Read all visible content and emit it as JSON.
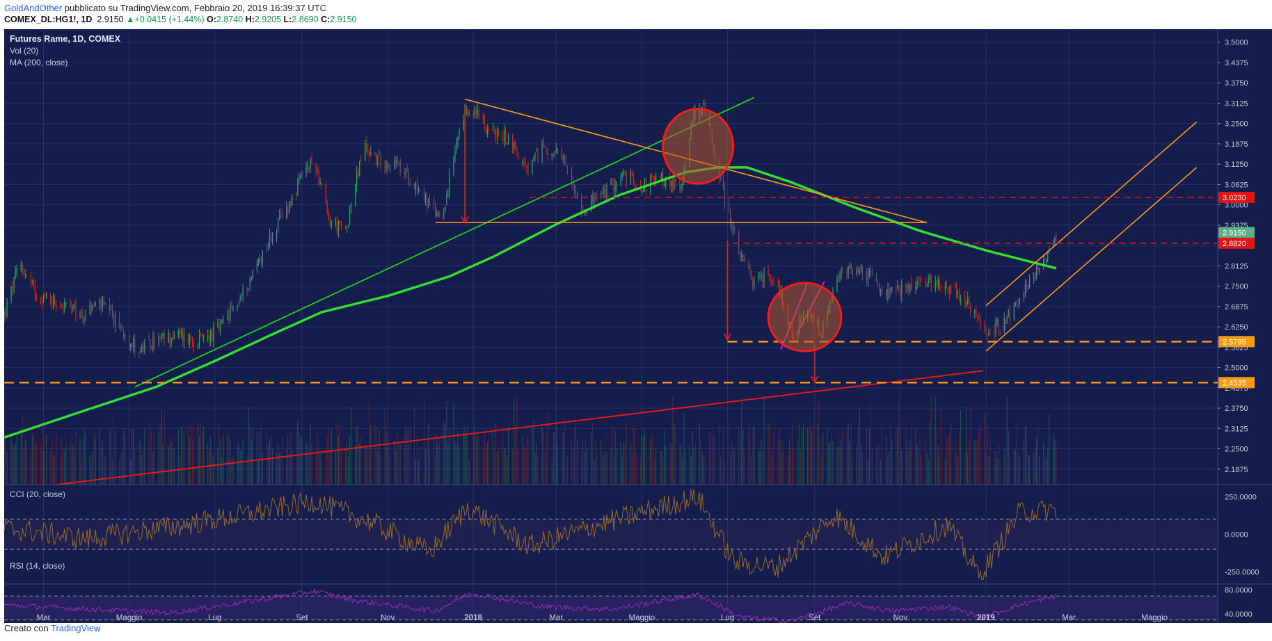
{
  "header": {
    "author": "GoldAndOther",
    "published": "pubblicato su TradingView.com, Febbraio 20, 2019 16:39:37 UTC",
    "symbol": "COMEX_DL:HG1!, 1D",
    "last": "2.9150",
    "arrow": "▲",
    "change": "+0.0415 (+1.44%)",
    "o_label": "O:",
    "o": "2.8740",
    "h_label": "H:",
    "h": "2.9205",
    "l_label": "L:",
    "l": "2.8690",
    "c_label": "C:",
    "c": "2.9150"
  },
  "footer": {
    "prefix": "Creato con",
    "brand": "TradingView"
  },
  "colors": {
    "background": "#141d4b",
    "grid": "#24316a",
    "up": "#2ea66a",
    "down": "#b8322f",
    "ma": "#33dd33",
    "trend_green": "#22cc22",
    "trend_red": "#e31b1b",
    "orange": "#ff9a1a",
    "magenta": "#e02de0",
    "cci": "#9a6a2a",
    "rsi": "#9b2bb5",
    "price_badge": "#5fae85",
    "red_badge": "#e01616",
    "orange_badge": "#f39c12"
  },
  "chart_data": {
    "type": "candlestick",
    "title": "Futures Rame, 1D, COMEX",
    "indicators": [
      "Vol (20)",
      "MA (200, close)"
    ],
    "ylim": [
      2.14,
      3.54
    ],
    "y_ticks": [
      "3.5000",
      "3.4375",
      "3.3750",
      "3.3125",
      "3.2500",
      "3.1875",
      "3.1250",
      "3.0625",
      "3.0000",
      "2.9375",
      "2.8750",
      "2.8125",
      "2.7500",
      "2.6875",
      "2.6250",
      "2.5625",
      "2.5000",
      "2.4375",
      "2.3750",
      "2.3125",
      "2.2500",
      "2.1875"
    ],
    "x_ticks": [
      {
        "label": "Mar",
        "date": "2017-03-01",
        "bold": false
      },
      {
        "label": "Maggio",
        "date": "2017-05-01",
        "bold": false
      },
      {
        "label": "Lug",
        "date": "2017-07-01",
        "bold": false
      },
      {
        "label": "Set",
        "date": "2017-09-01",
        "bold": false
      },
      {
        "label": "Nov",
        "date": "2017-11-01",
        "bold": false
      },
      {
        "label": "2018",
        "date": "2018-01-01",
        "bold": true
      },
      {
        "label": "Mar",
        "date": "2018-03-01",
        "bold": false
      },
      {
        "label": "Maggio",
        "date": "2018-05-01",
        "bold": false
      },
      {
        "label": "Lug",
        "date": "2018-07-01",
        "bold": false
      },
      {
        "label": "Set",
        "date": "2018-09-01",
        "bold": false
      },
      {
        "label": "Nov",
        "date": "2018-11-01",
        "bold": false
      },
      {
        "label": "2019",
        "date": "2019-01-01",
        "bold": true
      },
      {
        "label": "Mar",
        "date": "2019-03-01",
        "bold": false
      },
      {
        "label": "Maggio",
        "date": "2019-05-01",
        "bold": false
      }
    ],
    "price_path": [
      [
        "2017-02-01",
        2.66
      ],
      [
        "2017-02-12",
        2.82
      ],
      [
        "2017-02-25",
        2.72
      ],
      [
        "2017-03-12",
        2.7
      ],
      [
        "2017-03-28",
        2.66
      ],
      [
        "2017-04-10",
        2.7
      ],
      [
        "2017-04-25",
        2.62
      ],
      [
        "2017-05-08",
        2.55
      ],
      [
        "2017-05-20",
        2.58
      ],
      [
        "2017-06-05",
        2.6
      ],
      [
        "2017-06-20",
        2.58
      ],
      [
        "2017-07-05",
        2.62
      ],
      [
        "2017-07-20",
        2.72
      ],
      [
        "2017-08-05",
        2.86
      ],
      [
        "2017-08-20",
        2.98
      ],
      [
        "2017-09-03",
        3.1
      ],
      [
        "2017-09-10",
        3.14
      ],
      [
        "2017-09-20",
        2.95
      ],
      [
        "2017-10-02",
        2.92
      ],
      [
        "2017-10-15",
        3.18
      ],
      [
        "2017-10-25",
        3.14
      ],
      [
        "2017-11-08",
        3.12
      ],
      [
        "2017-11-22",
        3.06
      ],
      [
        "2017-12-03",
        2.98
      ],
      [
        "2017-12-10",
        2.97
      ],
      [
        "2017-12-22",
        3.22
      ],
      [
        "2017-12-30",
        3.3
      ],
      [
        "2018-01-15",
        3.22
      ],
      [
        "2018-01-28",
        3.2
      ],
      [
        "2018-02-08",
        3.1
      ],
      [
        "2018-02-20",
        3.18
      ],
      [
        "2018-03-05",
        3.14
      ],
      [
        "2018-03-20",
        2.99
      ],
      [
        "2018-04-05",
        3.04
      ],
      [
        "2018-04-18",
        3.09
      ],
      [
        "2018-05-01",
        3.06
      ],
      [
        "2018-05-15",
        3.08
      ],
      [
        "2018-05-28",
        3.05
      ],
      [
        "2018-06-07",
        3.28
      ],
      [
        "2018-06-14",
        3.3
      ],
      [
        "2018-06-24",
        3.12
      ],
      [
        "2018-07-02",
        2.97
      ],
      [
        "2018-07-10",
        2.84
      ],
      [
        "2018-07-20",
        2.76
      ],
      [
        "2018-07-30",
        2.79
      ],
      [
        "2018-08-08",
        2.73
      ],
      [
        "2018-08-16",
        2.6
      ],
      [
        "2018-08-28",
        2.66
      ],
      [
        "2018-09-06",
        2.6
      ],
      [
        "2018-09-18",
        2.78
      ],
      [
        "2018-09-28",
        2.8
      ],
      [
        "2018-10-10",
        2.78
      ],
      [
        "2018-10-22",
        2.72
      ],
      [
        "2018-11-02",
        2.74
      ],
      [
        "2018-11-15",
        2.76
      ],
      [
        "2018-12-01",
        2.76
      ],
      [
        "2018-12-15",
        2.72
      ],
      [
        "2019-01-02",
        2.6
      ],
      [
        "2019-01-12",
        2.64
      ],
      [
        "2019-01-25",
        2.7
      ],
      [
        "2019-02-05",
        2.8
      ],
      [
        "2019-02-14",
        2.85
      ],
      [
        "2019-02-20",
        2.915
      ]
    ],
    "ma200_path": [
      [
        "2017-02-01",
        2.285
      ],
      [
        "2017-04-01",
        2.37
      ],
      [
        "2017-05-20",
        2.44
      ],
      [
        "2017-07-01",
        2.52
      ],
      [
        "2017-08-15",
        2.61
      ],
      [
        "2017-09-15",
        2.67
      ],
      [
        "2017-11-01",
        2.72
      ],
      [
        "2017-12-15",
        2.78
      ],
      [
        "2018-01-15",
        2.84
      ],
      [
        "2018-03-01",
        2.94
      ],
      [
        "2018-04-15",
        3.03
      ],
      [
        "2018-06-01",
        3.1
      ],
      [
        "2018-06-24",
        3.115
      ],
      [
        "2018-07-15",
        3.115
      ],
      [
        "2018-08-15",
        3.07
      ],
      [
        "2018-10-01",
        2.99
      ],
      [
        "2018-11-15",
        2.92
      ],
      [
        "2019-01-01",
        2.86
      ],
      [
        "2019-02-20",
        2.805
      ]
    ],
    "drawings": {
      "triangle_top": [
        [
          "2017-12-26",
          3.325
        ],
        [
          "2018-11-20",
          2.945
        ]
      ],
      "triangle_base": [
        [
          "2017-12-05",
          2.946
        ],
        [
          "2018-11-20",
          2.946
        ]
      ],
      "green_trend": [
        [
          "2017-05-05",
          2.44
        ],
        [
          "2018-07-20",
          3.33
        ]
      ],
      "red_trend": [
        [
          "2017-02-01",
          2.12
        ],
        [
          "2018-12-30",
          2.49
        ]
      ],
      "channel_lower": [
        [
          "2019-01-01",
          2.55
        ],
        [
          "2019-05-31",
          3.115
        ]
      ],
      "channel_upper": [
        [
          "2019-01-01",
          2.69
        ],
        [
          "2019-05-31",
          3.255
        ]
      ],
      "magenta_1": [
        [
          "2018-08-08",
          2.555
        ],
        [
          "2018-08-27",
          2.76
        ]
      ],
      "magenta_2": [
        [
          "2018-08-19",
          2.6
        ],
        [
          "2018-09-08",
          2.765
        ]
      ],
      "dashed_red_high": {
        "from": "2018-02-10",
        "value": 3.023
      },
      "dashed_red_low": {
        "from": "2018-07-05",
        "value": 2.882
      },
      "dashed_orange_mid": {
        "from": "2018-07-01",
        "value": 2.5795
      },
      "dashed_orange_low": {
        "from": "2017-02-01",
        "value": 2.4535
      },
      "arrows": [
        {
          "date": "2017-12-26",
          "from": 3.31,
          "to": 2.945
        },
        {
          "date": "2018-07-01",
          "from": 2.89,
          "to": 2.585
        },
        {
          "date": "2018-09-01",
          "from": 2.57,
          "to": 2.455
        }
      ],
      "ellipses": [
        {
          "cx": "2018-06-10",
          "cy": 3.18,
          "rx_days": 25,
          "ry": 0.115
        },
        {
          "cx": "2018-08-25",
          "cy": 2.655,
          "rx_days": 26,
          "ry": 0.105
        }
      ]
    },
    "price_labels": [
      {
        "text": "3.0230",
        "value": 3.023,
        "style": "red"
      },
      {
        "text": "2.9150",
        "value": 2.915,
        "style": "green"
      },
      {
        "text": "2.8820",
        "value": 2.882,
        "style": "red"
      },
      {
        "text": "2.5795",
        "value": 2.5795,
        "style": "orange"
      },
      {
        "text": "2.4535",
        "value": 2.4535,
        "style": "orange"
      }
    ],
    "cci": {
      "label": "CCI (20, close)",
      "ylim": [
        -330,
        330
      ],
      "levels": [
        100,
        -100
      ],
      "ticks": [
        "250.0000",
        "0.0000",
        "-250.0000"
      ],
      "path": [
        [
          "2017-02-01",
          40
        ],
        [
          "2017-04-01",
          -30
        ],
        [
          "2017-06-01",
          50
        ],
        [
          "2017-07-15",
          120
        ],
        [
          "2017-09-10",
          220
        ],
        [
          "2017-10-20",
          80
        ],
        [
          "2017-12-01",
          -120
        ],
        [
          "2017-12-28",
          180
        ],
        [
          "2018-02-10",
          -80
        ],
        [
          "2018-04-10",
          90
        ],
        [
          "2018-06-10",
          250
        ],
        [
          "2018-07-05",
          -180
        ],
        [
          "2018-08-05",
          -220
        ],
        [
          "2018-09-15",
          130
        ],
        [
          "2018-10-20",
          -150
        ],
        [
          "2018-12-05",
          60
        ],
        [
          "2018-12-28",
          -280
        ],
        [
          "2019-01-25",
          150
        ],
        [
          "2019-02-20",
          160
        ]
      ]
    },
    "rsi": {
      "label": "RSI (14, close)",
      "ylim": [
        25,
        90
      ],
      "levels": [
        70,
        30
      ],
      "ticks": [
        "80.0000",
        "40.0000"
      ],
      "path": [
        [
          "2017-02-01",
          55
        ],
        [
          "2017-04-20",
          46
        ],
        [
          "2017-06-01",
          42
        ],
        [
          "2017-08-05",
          65
        ],
        [
          "2017-09-10",
          78
        ],
        [
          "2017-10-10",
          62
        ],
        [
          "2017-12-05",
          45
        ],
        [
          "2017-12-30",
          75
        ],
        [
          "2018-02-20",
          52
        ],
        [
          "2018-04-10",
          48
        ],
        [
          "2018-06-10",
          72
        ],
        [
          "2018-07-10",
          35
        ],
        [
          "2018-08-15",
          28
        ],
        [
          "2018-09-25",
          58
        ],
        [
          "2018-10-25",
          45
        ],
        [
          "2018-12-05",
          52
        ],
        [
          "2018-12-30",
          34
        ],
        [
          "2019-01-25",
          55
        ],
        [
          "2019-02-20",
          70
        ]
      ]
    }
  }
}
